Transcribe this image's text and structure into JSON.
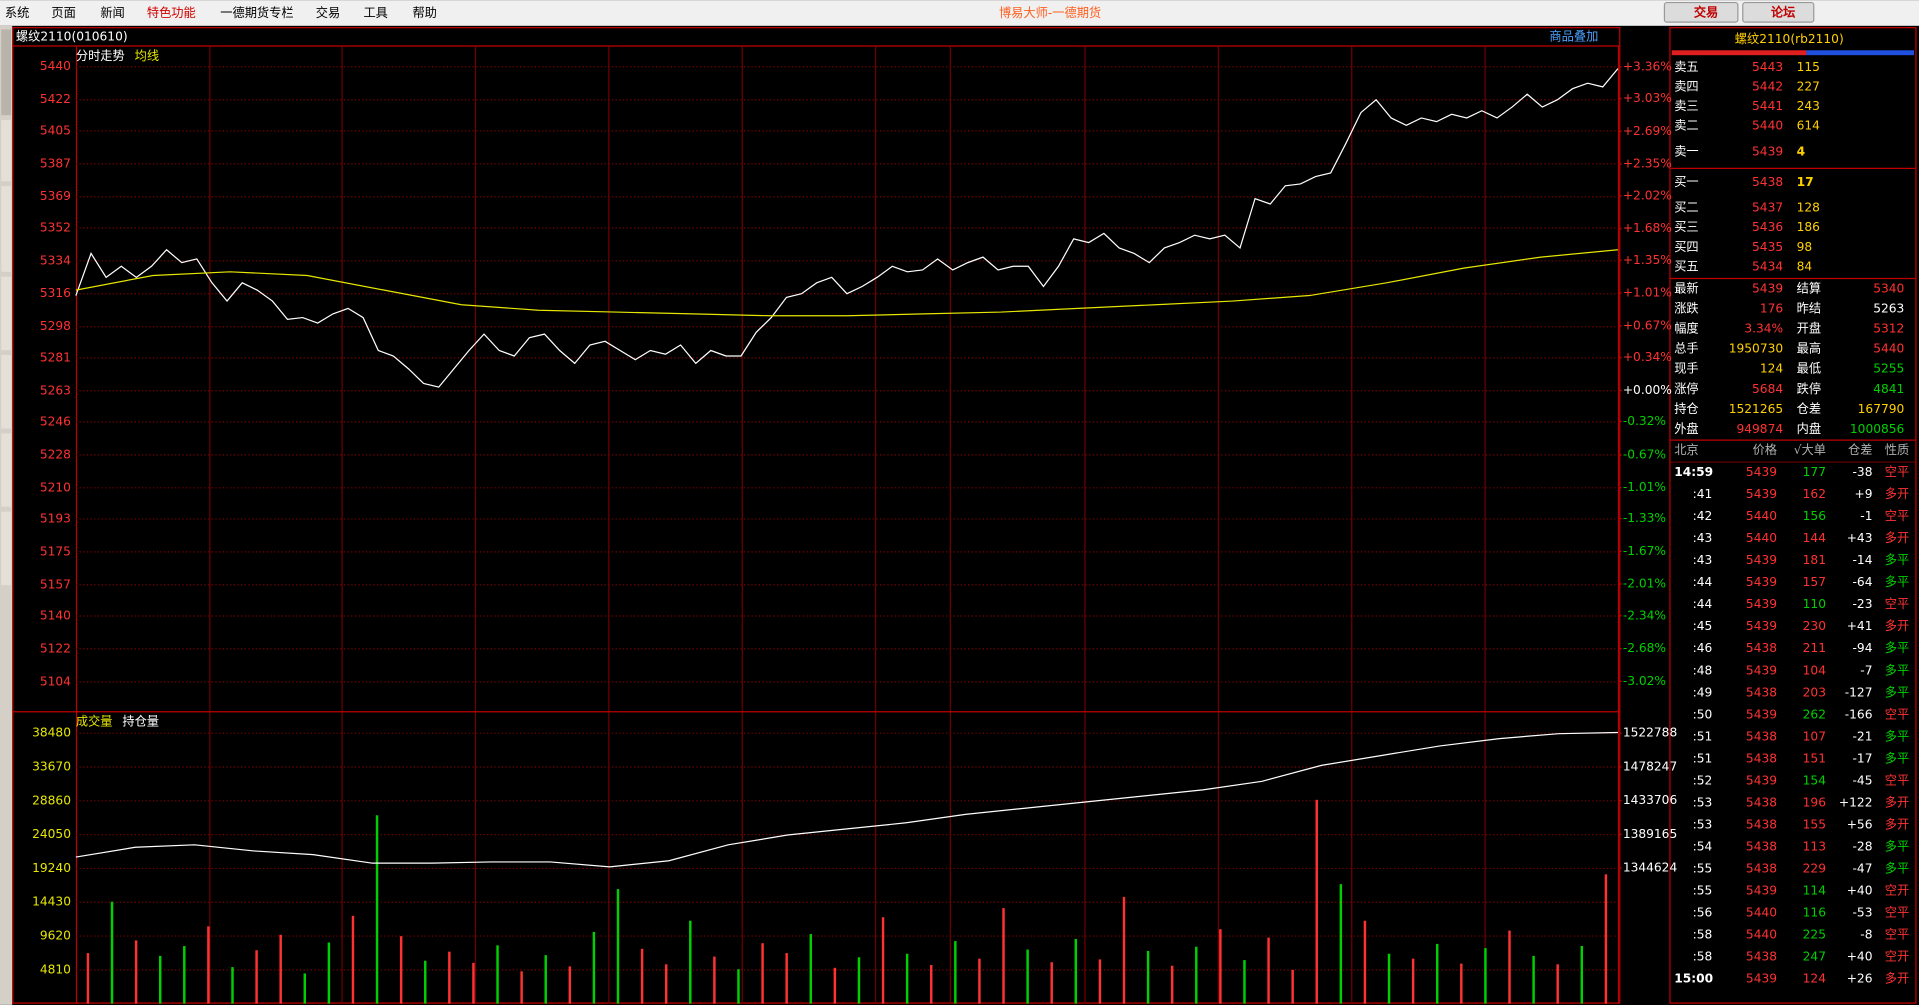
{
  "menu": [
    "系统",
    "页面",
    "新闻",
    "特色功能",
    "一德期货专栏",
    "交易",
    "工具",
    "帮助"
  ],
  "window_title": "博易大师-一德期货",
  "buttons": [
    "交易",
    "论坛"
  ],
  "chart_header": {
    "title": "螺纹2110(010610)",
    "overlay": "商品叠加"
  },
  "chart_data": [
    {
      "type": "line",
      "series": [
        {
          "name": "分时走势",
          "color": "#ffffff",
          "values": [
            5315,
            5338,
            5325,
            5331,
            5325,
            5331,
            5340,
            5333,
            5335,
            5322,
            5312,
            5322,
            5318,
            5312,
            5302,
            5303,
            5300,
            5305,
            5308,
            5303,
            5285,
            5282,
            5275,
            5267,
            5265,
            5275,
            5285,
            5294,
            5285,
            5282,
            5292,
            5294,
            5285,
            5278,
            5288,
            5290,
            5285,
            5280,
            5285,
            5283,
            5288,
            5278,
            5285,
            5282,
            5282,
            5295,
            5303,
            5314,
            5316,
            5322,
            5325,
            5316,
            5320,
            5325,
            5331,
            5328,
            5329,
            5335,
            5329,
            5333,
            5336,
            5329,
            5331,
            5331,
            5320,
            5331,
            5346,
            5344,
            5349,
            5341,
            5338,
            5333,
            5341,
            5344,
            5348,
            5346,
            5348,
            5341,
            5368,
            5365,
            5375,
            5376,
            5380,
            5382,
            5398,
            5415,
            5422,
            5412,
            5408,
            5412,
            5410,
            5414,
            5412,
            5416,
            5412,
            5418,
            5425,
            5418,
            5422,
            5428,
            5431,
            5429,
            5439
          ]
        },
        {
          "name": "均线",
          "color": "#e6e600",
          "values": [
            5318,
            5326,
            5328,
            5326,
            5318,
            5310,
            5307,
            5306,
            5305,
            5304,
            5304,
            5305,
            5306,
            5308,
            5310,
            5312,
            5315,
            5322,
            5330,
            5336,
            5340
          ]
        }
      ],
      "ylim": [
        5088,
        5451
      ],
      "yticks": [
        5440,
        5422,
        5405,
        5387,
        5369,
        5352,
        5334,
        5316,
        5298,
        5281,
        5263,
        5246,
        5228,
        5210,
        5193,
        5175,
        5157,
        5140,
        5122,
        5104
      ],
      "y2lim": [
        -3.33,
        3.57
      ],
      "y2ticks": [
        {
          "value": 3.36,
          "label": "+3.36%"
        },
        {
          "value": 3.03,
          "label": "+3.03%"
        },
        {
          "value": 2.69,
          "label": "+2.69%"
        },
        {
          "value": 2.35,
          "label": "+2.35%"
        },
        {
          "value": 2.02,
          "label": "+2.02%"
        },
        {
          "value": 1.68,
          "label": "+1.68%"
        },
        {
          "value": 1.35,
          "label": "+1.35%"
        },
        {
          "value": 1.01,
          "label": "+1.01%"
        },
        {
          "value": 0.67,
          "label": "+0.67%"
        },
        {
          "value": 0.34,
          "label": "+0.34%"
        },
        {
          "value": 0,
          "label": "+0.00%"
        },
        {
          "value": -0.32,
          "label": "-0.32%"
        },
        {
          "value": -0.67,
          "label": "-0.67%"
        },
        {
          "value": -1.01,
          "label": "-1.01%"
        },
        {
          "value": -1.33,
          "label": "-1.33%"
        },
        {
          "value": -1.67,
          "label": "-1.67%"
        },
        {
          "value": -2.01,
          "label": "-2.01%"
        },
        {
          "value": -2.34,
          "label": "-2.34%"
        },
        {
          "value": -2.68,
          "label": "-2.68%"
        },
        {
          "value": -3.02,
          "label": "-3.02%"
        }
      ],
      "grid": true
    },
    {
      "type": "bar",
      "series": [
        {
          "name": "成交量",
          "color": "#e6e600",
          "values": [
            7200,
            14500,
            9000,
            6800,
            8200,
            11000,
            5200,
            7600,
            9800,
            4300,
            8700,
            12500,
            26800,
            9600,
            6100,
            7400,
            5800,
            8300,
            4600,
            6900,
            5300,
            10200,
            16300,
            7800,
            5600,
            11800,
            6700,
            4900,
            8600,
            7200,
            9900,
            5100,
            6600,
            12300,
            7100,
            5500,
            8900,
            6400,
            13600,
            7700,
            5900,
            9200,
            6300,
            15200,
            7500,
            5400,
            8100,
            10600,
            6200,
            9400,
            4800,
            29000,
            17000,
            11800,
            7100,
            6400,
            8500,
            5700,
            7900,
            10400,
            6800,
            5600,
            8200,
            18400
          ],
          "bar_colors": [
            "#ff3232",
            "#00d000",
            "#ff3232",
            "#00d000",
            "#00d000",
            "#ff3232",
            "#00d000",
            "#ff3232",
            "#ff3232",
            "#00d000",
            "#00d000",
            "#ff3232",
            "#00d000",
            "#ff3232",
            "#00d000",
            "#ff3232",
            "#ff3232",
            "#00d000",
            "#ff3232",
            "#00d000",
            "#ff3232",
            "#00d000",
            "#00d000",
            "#ff3232",
            "#ff3232",
            "#00d000",
            "#ff3232",
            "#00d000",
            "#ff3232",
            "#ff3232",
            "#00d000",
            "#ff3232",
            "#00d000",
            "#ff3232",
            "#00d000",
            "#ff3232",
            "#00d000",
            "#ff3232",
            "#ff3232",
            "#00d000",
            "#ff3232",
            "#00d000",
            "#ff3232",
            "#ff3232",
            "#00d000",
            "#ff3232",
            "#00d000",
            "#ff3232",
            "#00d000",
            "#ff3232",
            "#ff3232",
            "#ff3232",
            "#00d000",
            "#ff3232",
            "#00d000",
            "#ff3232",
            "#00d000",
            "#ff3232",
            "#00d000",
            "#ff3232",
            "#00d000",
            "#ff3232",
            "#00d000",
            "#ff3232"
          ]
        },
        {
          "name": "持仓量",
          "color": "#ffffff",
          "type": "line",
          "axis": "y2",
          "values": [
            1359150,
            1372060,
            1375290,
            1367220,
            1362380,
            1351080,
            1351080,
            1352690,
            1352690,
            1346240,
            1354310,
            1375290,
            1388200,
            1396270,
            1404340,
            1415630,
            1423700,
            1431770,
            1439840,
            1447910,
            1459210,
            1480180,
            1493090,
            1506000,
            1515690,
            1522140,
            1523760
          ]
        }
      ],
      "ylim": [
        0,
        41440
      ],
      "yticks": [
        38480,
        33670,
        28860,
        24050,
        19240,
        14430,
        9620,
        4810
      ],
      "y2lim": [
        1165494,
        1550223
      ],
      "y2ticks": [
        1522788,
        1478247,
        1433706,
        1389165,
        1344624
      ],
      "grid": true
    }
  ],
  "quote": {
    "title": "螺纹2110(rb2110)",
    "asks": [
      [
        "卖五",
        "5443",
        "115"
      ],
      [
        "卖四",
        "5442",
        "227"
      ],
      [
        "卖三",
        "5441",
        "243"
      ],
      [
        "卖二",
        "5440",
        "614"
      ],
      [
        "卖一",
        "5439",
        "4"
      ]
    ],
    "bids": [
      [
        "买一",
        "5438",
        "17"
      ],
      [
        "买二",
        "5437",
        "128"
      ],
      [
        "买三",
        "5436",
        "186"
      ],
      [
        "买四",
        "5435",
        "98"
      ],
      [
        "买五",
        "5434",
        "84"
      ]
    ],
    "stats": [
      [
        "最新",
        "5439",
        "结算",
        "5340"
      ],
      [
        "涨跌",
        "176",
        "昨结",
        "5263"
      ],
      [
        "幅度",
        "3.34%",
        "开盘",
        "5312"
      ],
      [
        "总手",
        "1950730",
        "最高",
        "5440"
      ],
      [
        "现手",
        "124",
        "最低",
        "5255"
      ],
      [
        "涨停",
        "5684",
        "跌停",
        "4841"
      ],
      [
        "持仓",
        "1521265",
        "仓差",
        "167790"
      ],
      [
        "外盘",
        "949874",
        "内盘",
        "1000856"
      ]
    ]
  },
  "ticks": {
    "header": [
      "北京",
      "价格",
      "√大单",
      "仓差",
      "性质"
    ],
    "rows": [
      [
        "14:59",
        "5439",
        "177",
        "-38",
        "空平"
      ],
      [
        ":41",
        "5439",
        "162",
        "+9",
        "多开"
      ],
      [
        ":42",
        "5440",
        "156",
        "-1",
        "空平"
      ],
      [
        ":43",
        "5440",
        "144",
        "+43",
        "多开"
      ],
      [
        ":43",
        "5439",
        "181",
        "-14",
        "多平"
      ],
      [
        ":44",
        "5439",
        "157",
        "-64",
        "多平"
      ],
      [
        ":44",
        "5439",
        "110",
        "-23",
        "空平"
      ],
      [
        ":45",
        "5439",
        "230",
        "+41",
        "多开"
      ],
      [
        ":46",
        "5438",
        "211",
        "-94",
        "多平"
      ],
      [
        ":48",
        "5439",
        "104",
        "-7",
        "多平"
      ],
      [
        ":49",
        "5438",
        "203",
        "-127",
        "多平"
      ],
      [
        ":50",
        "5439",
        "262",
        "-166",
        "空平"
      ],
      [
        ":51",
        "5438",
        "107",
        "-21",
        "多平"
      ],
      [
        ":51",
        "5438",
        "151",
        "-17",
        "多平"
      ],
      [
        ":52",
        "5439",
        "154",
        "-45",
        "空平"
      ],
      [
        ":53",
        "5438",
        "196",
        "+122",
        "多开"
      ],
      [
        ":53",
        "5438",
        "155",
        "+56",
        "多开"
      ],
      [
        ":54",
        "5438",
        "113",
        "-28",
        "多平"
      ],
      [
        ":55",
        "5438",
        "229",
        "-47",
        "多平"
      ],
      [
        ":55",
        "5439",
        "114",
        "+40",
        "空开"
      ],
      [
        ":56",
        "5440",
        "116",
        "-53",
        "空平"
      ],
      [
        ":58",
        "5440",
        "225",
        "-8",
        "空平"
      ],
      [
        ":58",
        "5438",
        "247",
        "+40",
        "空开"
      ],
      [
        "15:00",
        "5439",
        "124",
        "+26",
        "多开"
      ]
    ]
  }
}
